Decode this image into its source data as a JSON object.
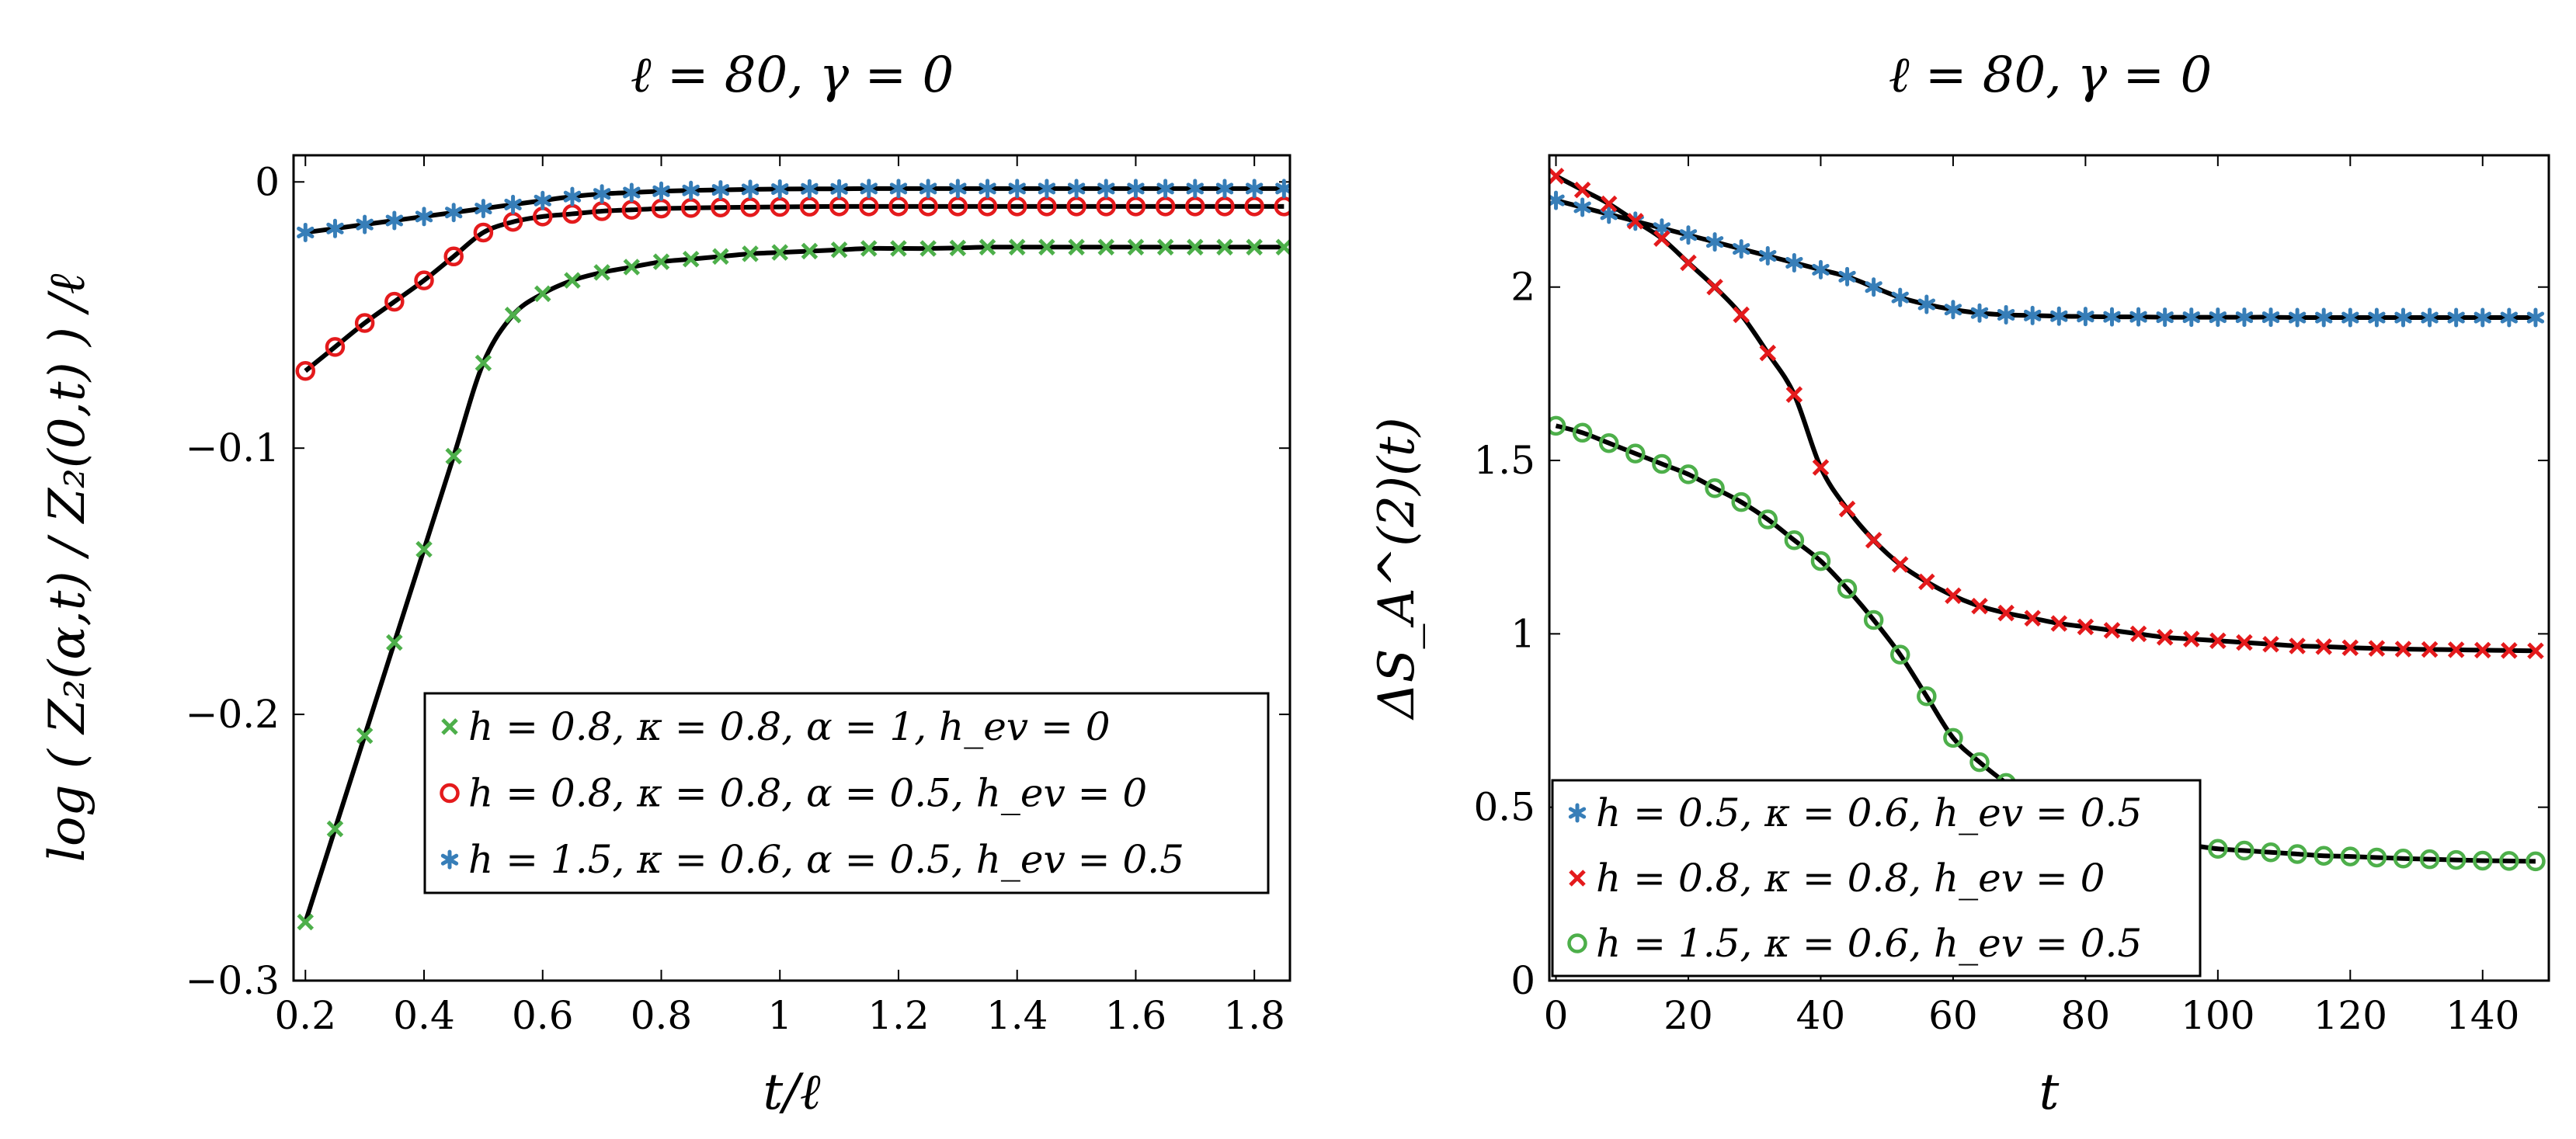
{
  "chart_data": [
    {
      "type": "line",
      "title": "ℓ = 80,    γ = 0",
      "xlabel": "t/ℓ",
      "ylabel": "log ( Z₂(α,t) / Z₂(0,t) ) /ℓ",
      "xlim": [
        0.18,
        1.86
      ],
      "ylim": [
        -0.3,
        0.01
      ],
      "xticks": [
        "0.2",
        "0.4",
        "0.6",
        "0.8",
        "1",
        "1.2",
        "1.4",
        "1.6",
        "1.8"
      ],
      "xtick_values": [
        0.2,
        0.4,
        0.6,
        0.8,
        1.0,
        1.2,
        1.4,
        1.6,
        1.8
      ],
      "yticks": [
        "0",
        "−0.1",
        "−0.2",
        "−0.3"
      ],
      "ytick_values": [
        0,
        -0.1,
        -0.2,
        -0.3
      ],
      "legend_position": "bottom-right",
      "series": [
        {
          "name": "h = 0.8,  κ = 0.8,  α = 1,  h_ev = 0",
          "color": "#4daf4a",
          "marker": "x",
          "x": [
            0.2,
            0.25,
            0.3,
            0.35,
            0.4,
            0.45,
            0.5,
            0.55,
            0.6,
            0.65,
            0.7,
            0.75,
            0.8,
            0.85,
            0.9,
            0.95,
            1.0,
            1.05,
            1.1,
            1.15,
            1.2,
            1.25,
            1.3,
            1.35,
            1.4,
            1.45,
            1.5,
            1.55,
            1.6,
            1.65,
            1.7,
            1.75,
            1.8,
            1.85
          ],
          "y": [
            -0.278,
            -0.243,
            -0.208,
            -0.173,
            -0.138,
            -0.103,
            -0.068,
            -0.05,
            -0.042,
            -0.037,
            -0.034,
            -0.032,
            -0.03,
            -0.029,
            -0.028,
            -0.027,
            -0.0265,
            -0.026,
            -0.0255,
            -0.025,
            -0.025,
            -0.025,
            -0.0248,
            -0.0245,
            -0.0245,
            -0.0245,
            -0.0245,
            -0.0245,
            -0.0245,
            -0.0245,
            -0.0245,
            -0.0245,
            -0.0245,
            -0.0245
          ]
        },
        {
          "name": "h = 0.8,  κ = 0.8,  α = 0.5,  h_ev = 0",
          "color": "#e41a1c",
          "marker": "o",
          "x": [
            0.2,
            0.25,
            0.3,
            0.35,
            0.4,
            0.45,
            0.5,
            0.55,
            0.6,
            0.65,
            0.7,
            0.75,
            0.8,
            0.85,
            0.9,
            0.95,
            1.0,
            1.05,
            1.1,
            1.15,
            1.2,
            1.25,
            1.3,
            1.35,
            1.4,
            1.45,
            1.5,
            1.55,
            1.6,
            1.65,
            1.7,
            1.75,
            1.8,
            1.85
          ],
          "y": [
            -0.071,
            -0.062,
            -0.053,
            -0.045,
            -0.037,
            -0.028,
            -0.019,
            -0.015,
            -0.013,
            -0.012,
            -0.011,
            -0.0105,
            -0.01,
            -0.0098,
            -0.0096,
            -0.0095,
            -0.0094,
            -0.0093,
            -0.0092,
            -0.0092,
            -0.0092,
            -0.0092,
            -0.0092,
            -0.0092,
            -0.0092,
            -0.0092,
            -0.0092,
            -0.0092,
            -0.0092,
            -0.0092,
            -0.0092,
            -0.0092,
            -0.0092,
            -0.0092
          ]
        },
        {
          "name": "h = 1.5,  κ = 0.6,  α = 0.5,  h_ev = 0.5",
          "color": "#377eb8",
          "marker": "*",
          "x": [
            0.2,
            0.25,
            0.3,
            0.35,
            0.4,
            0.45,
            0.5,
            0.55,
            0.6,
            0.65,
            0.7,
            0.75,
            0.8,
            0.85,
            0.9,
            0.95,
            1.0,
            1.05,
            1.1,
            1.15,
            1.2,
            1.25,
            1.3,
            1.35,
            1.4,
            1.45,
            1.5,
            1.55,
            1.6,
            1.65,
            1.7,
            1.75,
            1.8,
            1.85
          ],
          "y": [
            -0.019,
            -0.0175,
            -0.016,
            -0.0145,
            -0.013,
            -0.0115,
            -0.01,
            -0.0085,
            -0.007,
            -0.0055,
            -0.0045,
            -0.004,
            -0.0035,
            -0.0032,
            -0.003,
            -0.0028,
            -0.0027,
            -0.0026,
            -0.0026,
            -0.0025,
            -0.0025,
            -0.0025,
            -0.0025,
            -0.0025,
            -0.0025,
            -0.0025,
            -0.0025,
            -0.0025,
            -0.0025,
            -0.0025,
            -0.0025,
            -0.0025,
            -0.0025,
            -0.0025
          ]
        }
      ]
    },
    {
      "type": "line",
      "title": "ℓ = 80,    γ = 0",
      "xlabel": "t",
      "ylabel": "ΔS_A^(2)(t)",
      "xlim": [
        -1,
        150
      ],
      "ylim": [
        0,
        2.38
      ],
      "xticks": [
        "0",
        "20",
        "40",
        "60",
        "80",
        "100",
        "120",
        "140"
      ],
      "xtick_values": [
        0,
        20,
        40,
        60,
        80,
        100,
        120,
        140
      ],
      "yticks": [
        "0",
        "0.5",
        "1",
        "1.5",
        "2"
      ],
      "ytick_values": [
        0,
        0.5,
        1,
        1.5,
        2
      ],
      "legend_position": "bottom-left",
      "series": [
        {
          "name": "h = 0.5,  κ = 0.6,  h_ev = 0.5",
          "color": "#377eb8",
          "marker": "*",
          "x": [
            0,
            4,
            8,
            12,
            16,
            20,
            24,
            28,
            32,
            36,
            40,
            44,
            48,
            52,
            56,
            60,
            64,
            68,
            72,
            76,
            80,
            84,
            88,
            92,
            96,
            100,
            104,
            108,
            112,
            116,
            120,
            124,
            128,
            132,
            136,
            140,
            144,
            148
          ],
          "y": [
            2.25,
            2.23,
            2.21,
            2.19,
            2.17,
            2.15,
            2.13,
            2.11,
            2.09,
            2.07,
            2.05,
            2.03,
            2.0,
            1.97,
            1.95,
            1.935,
            1.925,
            1.92,
            1.918,
            1.916,
            1.915,
            1.914,
            1.914,
            1.913,
            1.913,
            1.913,
            1.913,
            1.913,
            1.912,
            1.912,
            1.912,
            1.912,
            1.912,
            1.912,
            1.912,
            1.912,
            1.912,
            1.912
          ]
        },
        {
          "name": "h = 0.8,  κ = 0.8,  h_ev = 0",
          "color": "#e41a1c",
          "marker": "x",
          "x": [
            0,
            4,
            8,
            12,
            16,
            20,
            24,
            28,
            32,
            36,
            40,
            44,
            48,
            52,
            56,
            60,
            64,
            68,
            72,
            76,
            80,
            84,
            88,
            92,
            96,
            100,
            104,
            108,
            112,
            116,
            120,
            124,
            128,
            132,
            136,
            140,
            144,
            148
          ],
          "y": [
            2.32,
            2.28,
            2.24,
            2.19,
            2.14,
            2.07,
            2.0,
            1.92,
            1.81,
            1.69,
            1.48,
            1.36,
            1.27,
            1.2,
            1.15,
            1.11,
            1.08,
            1.06,
            1.045,
            1.03,
            1.02,
            1.01,
            1.0,
            0.99,
            0.985,
            0.98,
            0.975,
            0.97,
            0.965,
            0.963,
            0.96,
            0.958,
            0.956,
            0.955,
            0.954,
            0.953,
            0.952,
            0.951
          ]
        },
        {
          "name": "h = 1.5,  κ = 0.6,  h_ev = 0.5",
          "color": "#4daf4a",
          "marker": "o",
          "x": [
            0,
            4,
            8,
            12,
            16,
            20,
            24,
            28,
            32,
            36,
            40,
            44,
            48,
            52,
            56,
            60,
            64,
            68,
            72,
            76,
            80,
            84,
            88,
            92,
            96,
            100,
            104,
            108,
            112,
            116,
            120,
            124,
            128,
            132,
            136,
            140,
            144,
            148
          ],
          "y": [
            1.6,
            1.58,
            1.55,
            1.52,
            1.49,
            1.46,
            1.42,
            1.38,
            1.33,
            1.27,
            1.21,
            1.13,
            1.04,
            0.94,
            0.82,
            0.7,
            0.63,
            0.57,
            0.52,
            0.48,
            0.45,
            0.43,
            0.41,
            0.4,
            0.39,
            0.38,
            0.375,
            0.37,
            0.365,
            0.36,
            0.358,
            0.355,
            0.352,
            0.35,
            0.348,
            0.346,
            0.345,
            0.344
          ]
        }
      ]
    }
  ]
}
